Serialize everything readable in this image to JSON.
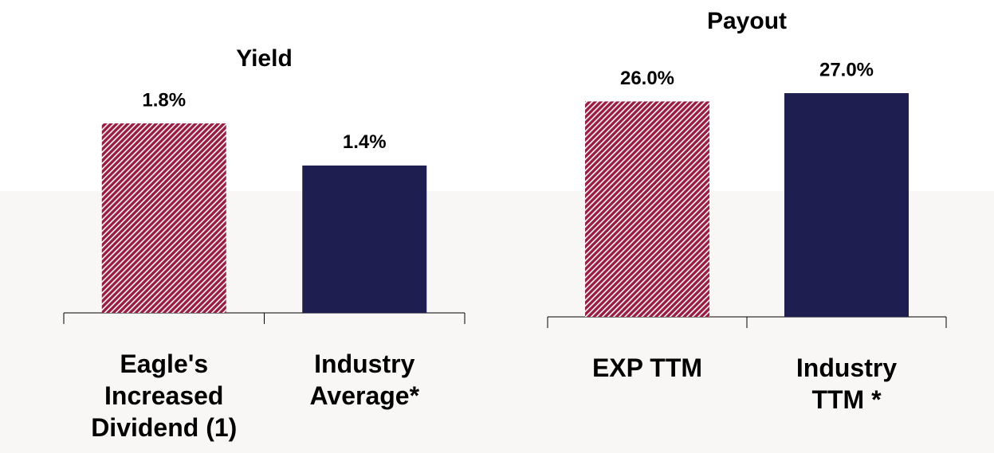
{
  "chart_data": [
    {
      "type": "bar",
      "title": "Yield",
      "categories": [
        "Eagle's\nIncreased\nDividend (1)",
        "Industry\nAverage*"
      ],
      "values": [
        1.8,
        1.4
      ],
      "value_labels": [
        "1.8%",
        "1.4%"
      ],
      "colors": [
        "#9e1a40",
        "#1e1e50"
      ],
      "hatched": [
        true,
        false
      ]
    },
    {
      "type": "bar",
      "title": "Payout",
      "categories": [
        "EXP TTM",
        "Industry\nTTM *"
      ],
      "values": [
        26.0,
        27.0
      ],
      "value_labels": [
        "26.0%",
        "27.0%"
      ],
      "colors": [
        "#9e1a40",
        "#1e1e50"
      ],
      "hatched": [
        true,
        false
      ]
    }
  ]
}
